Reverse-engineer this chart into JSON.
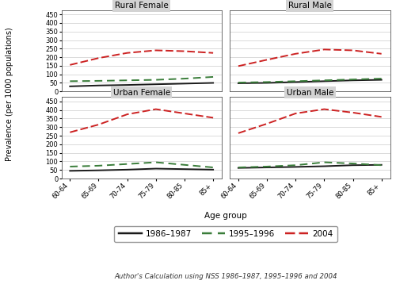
{
  "age_groups": [
    "60-64",
    "65-69",
    "70-74",
    "75-79",
    "80-85",
    "85+"
  ],
  "panels": {
    "Rural Female": {
      "1986-1987": [
        30,
        35,
        38,
        42,
        46,
        50
      ],
      "1995-1996": [
        60,
        62,
        65,
        68,
        75,
        85
      ],
      "2004": [
        155,
        195,
        225,
        240,
        235,
        225
      ]
    },
    "Rural Male": {
      "1986-1987": [
        48,
        50,
        55,
        60,
        65,
        68
      ],
      "1995-1996": [
        52,
        55,
        60,
        65,
        70,
        75
      ],
      "2004": [
        148,
        185,
        220,
        245,
        240,
        220
      ]
    },
    "Urban Female": {
      "1986-1987": [
        45,
        48,
        52,
        58,
        55,
        52
      ],
      "1995-1996": [
        70,
        75,
        85,
        95,
        80,
        65
      ],
      "2004": [
        270,
        315,
        375,
        405,
        380,
        355
      ]
    },
    "Urban Male": {
      "1986-1987": [
        62,
        65,
        68,
        72,
        78,
        80
      ],
      "1995-1996": [
        65,
        70,
        78,
        95,
        88,
        78
      ],
      "2004": [
        265,
        320,
        380,
        405,
        385,
        360
      ]
    }
  },
  "panel_order": [
    "Rural Female",
    "Rural Male",
    "Urban Female",
    "Urban Male"
  ],
  "line_styles": {
    "1986-1987": {
      "color": "#1a1a1a",
      "linewidth": 1.4
    },
    "1995-1996": {
      "color": "#3a7d3a",
      "linewidth": 1.4
    },
    "2004": {
      "color": "#cc2222",
      "linewidth": 1.4
    }
  },
  "legend_labels": [
    "1986–1987",
    "1995–1996",
    "2004"
  ],
  "legend_keys": [
    "1986-1987",
    "1995-1996",
    "2004"
  ],
  "ylabel": "Prevalence (per 1000 populations)",
  "xlabel": "Age group",
  "ylim": [
    0,
    475
  ],
  "yticks": [
    0,
    50,
    100,
    150,
    200,
    250,
    300,
    350,
    400,
    450
  ],
  "caption": "Author's Calculation using NSS 1986–1987, 1995–1996 and 2004",
  "panel_bg": "#d3d3d3",
  "plot_bg": "#ffffff",
  "grid_color": "#cccccc"
}
